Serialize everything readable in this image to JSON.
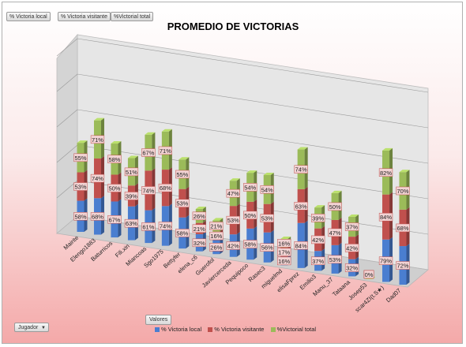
{
  "field_buttons": [
    "% Victoria local",
    "% Victoria visitante",
    "%Victorial total"
  ],
  "filter_button": {
    "label": "Jugador",
    "arrow": "▼"
  },
  "values_button": "Valores",
  "colors": {
    "local": "#4a7ed0",
    "visitante": "#c0504d",
    "total": "#9bbb59",
    "label_bg": "#f2d3d3",
    "label_border": "#c0504d"
  },
  "chart_data": {
    "type": "bar",
    "stacked": true,
    "three_d": true,
    "title": "PROMEDIO DE VICTORIAS",
    "legend_position": "bottom",
    "categories": [
      "Mairite",
      "Elengo1883",
      "Baturricos",
      "Fili.xin",
      "Miancoas",
      "Sgo1975",
      "Bettyfer",
      "elena_c6",
      "Guerofol",
      "Javiercerceda",
      "Pequipoco",
      "Rasec3",
      "miguelmd",
      "elisaFprez",
      "Emilio3",
      "Manu_37",
      "Tataana",
      "Josep53",
      "scar4ZI(t.S★)",
      "Dad07"
    ],
    "series": [
      {
        "name": "% Victoria local",
        "key": "local",
        "values": [
          58,
          68,
          67,
          63,
          61,
          74,
          58,
          32,
          26,
          42,
          58,
          56,
          16,
          84,
          37,
          53,
          32,
          0,
          79,
          72
        ]
      },
      {
        "name": "% Victoria visitante",
        "key": "visitante",
        "values": [
          53,
          74,
          50,
          39,
          74,
          68,
          53,
          21,
          16,
          53,
          50,
          53,
          17,
          63,
          42,
          47,
          42,
          0,
          84,
          68
        ]
      },
      {
        "name": "%Victorial total",
        "key": "total",
        "values": [
          55,
          71,
          58,
          51,
          67,
          71,
          55,
          26,
          21,
          47,
          54,
          54,
          16,
          74,
          39,
          50,
          37,
          0,
          82,
          70
        ]
      }
    ],
    "value_format": "percent"
  }
}
